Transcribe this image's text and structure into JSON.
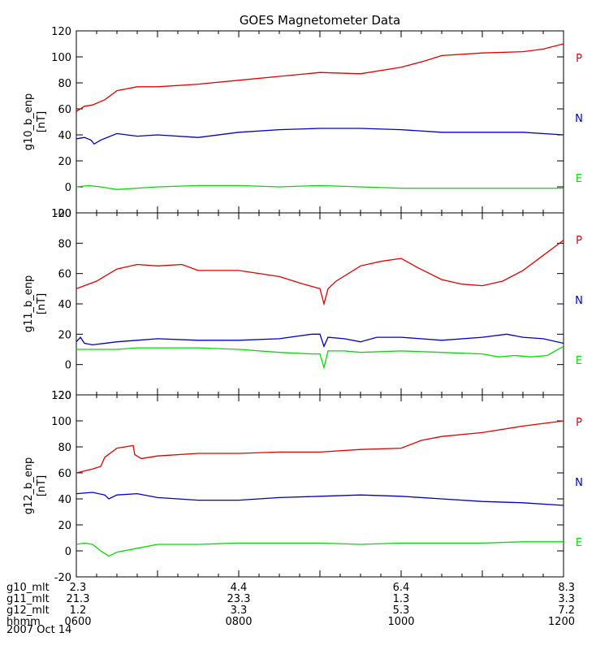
{
  "chart_data": {
    "type": "line",
    "title": "GOES Magnetometer Data",
    "xlabel": "",
    "x_range_hours": [
      6,
      12
    ],
    "colors": {
      "P": "#e00000",
      "N": "#0000c0",
      "E": "#00dd00",
      "axis": "#000000"
    },
    "panels": [
      {
        "ylabel": "g10_b_enp",
        "units": "[nT]",
        "ylim": [
          -20,
          120
        ],
        "yticks": [
          -20,
          0,
          20,
          40,
          60,
          80,
          100,
          120
        ],
        "legend": [
          "P",
          "N",
          "E"
        ],
        "series": [
          {
            "name": "P",
            "x": [
              6.0,
              6.1,
              6.2,
              6.35,
              6.5,
              6.75,
              7.0,
              7.5,
              8.0,
              8.5,
              9.0,
              9.5,
              10.0,
              10.3,
              10.5,
              11.0,
              11.5,
              11.75,
              12.0
            ],
            "y": [
              58,
              62,
              63,
              67,
              74,
              77,
              77,
              79,
              82,
              85,
              88,
              87,
              92,
              97,
              101,
              103,
              104,
              106,
              110
            ]
          },
          {
            "name": "N",
            "x": [
              6.0,
              6.1,
              6.18,
              6.22,
              6.3,
              6.5,
              6.75,
              7.0,
              7.5,
              8.0,
              8.5,
              9.0,
              9.5,
              10.0,
              10.5,
              11.0,
              11.5,
              12.0
            ],
            "y": [
              37,
              38,
              36,
              33,
              36,
              41,
              39,
              40,
              38,
              42,
              44,
              45,
              45,
              44,
              42,
              42,
              42,
              40
            ]
          },
          {
            "name": "E",
            "x": [
              6.0,
              6.15,
              6.3,
              6.5,
              6.75,
              7.0,
              7.5,
              8.0,
              8.5,
              9.0,
              9.5,
              10.0,
              10.5,
              11.0,
              11.5,
              12.0
            ],
            "y": [
              0,
              1,
              0,
              -2,
              -1,
              0,
              1,
              1,
              0,
              1,
              0,
              -1,
              -1,
              -1,
              -1,
              -1
            ]
          }
        ]
      },
      {
        "ylabel": "g11_b_enp",
        "units": "[nT]",
        "ylim": [
          -20,
          100
        ],
        "yticks": [
          -20,
          0,
          20,
          40,
          60,
          80,
          100
        ],
        "legend": [
          "P",
          "N",
          "E"
        ],
        "series": [
          {
            "name": "P",
            "x": [
              6.0,
              6.1,
              6.25,
              6.5,
              6.75,
              7.0,
              7.3,
              7.5,
              8.0,
              8.5,
              8.8,
              9.0,
              9.05,
              9.1,
              9.2,
              9.5,
              9.75,
              10.0,
              10.2,
              10.5,
              10.75,
              11.0,
              11.25,
              11.5,
              11.75,
              12.0
            ],
            "y": [
              50,
              52,
              55,
              63,
              66,
              65,
              66,
              62,
              62,
              58,
              53,
              50,
              40,
              50,
              55,
              65,
              68,
              70,
              64,
              56,
              53,
              52,
              55,
              62,
              72,
              82
            ]
          },
          {
            "name": "N",
            "x": [
              6.0,
              6.05,
              6.1,
              6.2,
              6.5,
              6.75,
              7.0,
              7.5,
              8.0,
              8.5,
              8.9,
              9.0,
              9.05,
              9.1,
              9.3,
              9.5,
              9.7,
              10.0,
              10.5,
              11.0,
              11.3,
              11.5,
              11.75,
              12.0
            ],
            "y": [
              15,
              18,
              14,
              13,
              15,
              16,
              17,
              16,
              16,
              17,
              20,
              20,
              12,
              18,
              17,
              15,
              18,
              18,
              16,
              18,
              20,
              18,
              17,
              14
            ]
          },
          {
            "name": "E",
            "x": [
              6.0,
              6.3,
              6.5,
              6.75,
              7.0,
              7.3,
              7.5,
              8.0,
              8.5,
              8.9,
              9.0,
              9.05,
              9.1,
              9.3,
              9.5,
              10.0,
              10.5,
              11.0,
              11.2,
              11.4,
              11.6,
              11.8,
              12.0
            ],
            "y": [
              10,
              10,
              10,
              11,
              11,
              11,
              11,
              10,
              8,
              7,
              7,
              -2,
              9,
              9,
              8,
              9,
              8,
              7,
              5,
              6,
              5,
              6,
              12
            ]
          }
        ]
      },
      {
        "ylabel": "g12_b_enp",
        "units": "[nT]",
        "ylim": [
          -20,
          120
        ],
        "yticks": [
          -20,
          0,
          20,
          40,
          60,
          80,
          100,
          120
        ],
        "legend": [
          "P",
          "N",
          "E"
        ],
        "series": [
          {
            "name": "P",
            "x": [
              6.0,
              6.2,
              6.3,
              6.35,
              6.5,
              6.7,
              6.72,
              6.8,
              7.0,
              7.5,
              8.0,
              8.5,
              9.0,
              9.5,
              10.0,
              10.25,
              10.5,
              11.0,
              11.5,
              12.0
            ],
            "y": [
              60,
              63,
              65,
              72,
              79,
              81,
              74,
              71,
              73,
              75,
              75,
              76,
              76,
              78,
              79,
              85,
              88,
              91,
              96,
              100
            ]
          },
          {
            "name": "N",
            "x": [
              6.0,
              6.2,
              6.35,
              6.4,
              6.5,
              6.75,
              7.0,
              7.5,
              8.0,
              8.5,
              9.0,
              9.5,
              10.0,
              10.5,
              11.0,
              11.5,
              12.0
            ],
            "y": [
              44,
              45,
              43,
              40,
              43,
              44,
              41,
              39,
              39,
              41,
              42,
              43,
              42,
              40,
              38,
              37,
              35
            ]
          },
          {
            "name": "E",
            "x": [
              6.0,
              6.1,
              6.2,
              6.3,
              6.4,
              6.5,
              6.75,
              7.0,
              7.5,
              8.0,
              8.5,
              9.0,
              9.5,
              10.0,
              10.5,
              11.0,
              11.5,
              12.0
            ],
            "y": [
              5,
              6,
              5,
              0,
              -4,
              -1,
              2,
              5,
              5,
              6,
              6,
              6,
              5,
              6,
              6,
              6,
              7,
              7
            ]
          }
        ]
      }
    ],
    "x_info_rows": [
      {
        "label": "g10_mlt",
        "values": [
          "2.3",
          "4.4",
          "6.4",
          "8.3"
        ]
      },
      {
        "label": "g11_mlt",
        "values": [
          "21.3",
          "23.3",
          "1.3",
          "3.3"
        ]
      },
      {
        "label": "g12_mlt",
        "values": [
          "1.2",
          "3.3",
          "5.3",
          "7.2"
        ]
      },
      {
        "label": "hhmm",
        "values": [
          "0600",
          "0800",
          "1000",
          "1200"
        ]
      }
    ],
    "x_info_hours": [
      6,
      8,
      10,
      12
    ],
    "date_label": "2007 Oct 14"
  }
}
